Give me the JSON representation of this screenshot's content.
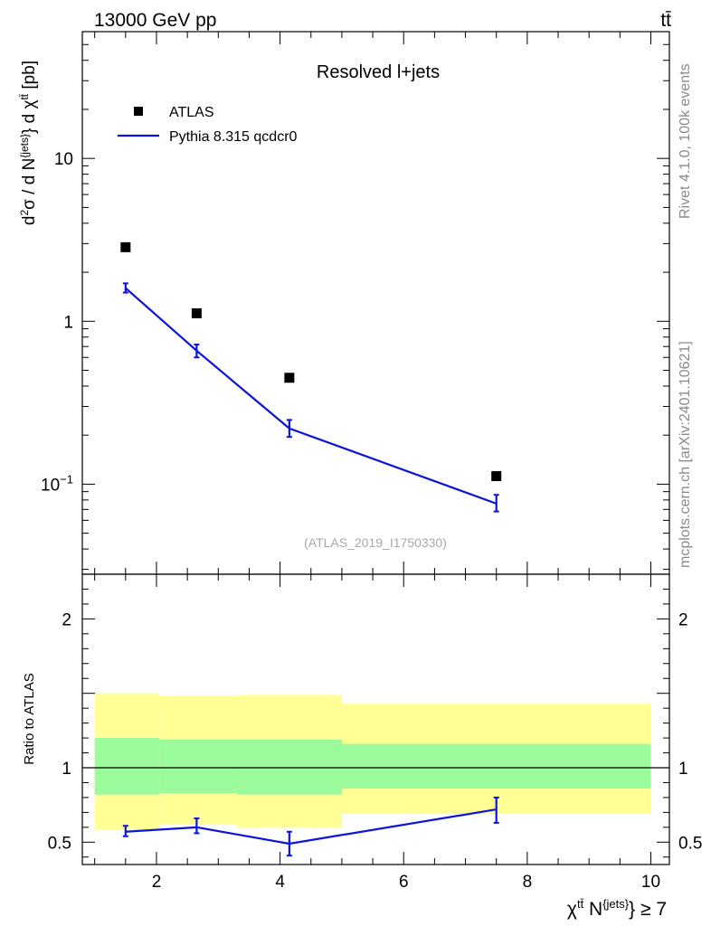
{
  "header": {
    "energy_label": "13000 GeV pp",
    "process_label": "tt̄"
  },
  "side_labels": {
    "rivet": "Rivet 4.1.0,  100k events",
    "mcplots": "mcplots.cern.ch [arXiv:2401.10621]"
  },
  "chart_data": [
    {
      "type": "scatter",
      "panel": "main",
      "title": "Resolved l+jets",
      "watermark": "(ATLAS_2019_I1750330)",
      "yscale": "log",
      "ylim": [
        0.028,
        60
      ],
      "xlim": [
        0.8,
        10.3
      ],
      "ylabel": "d²σ / d N^{jets} d χ^{tt̄} [pb]",
      "ytick_labels": [
        "10",
        "1",
        "10⁻¹"
      ],
      "ytick_values": [
        10,
        1,
        0.1
      ],
      "legend_position": "top-left",
      "series": [
        {
          "name": "ATLAS",
          "style": "markers",
          "color": "#000000",
          "x": [
            1.5,
            2.65,
            4.15,
            7.5
          ],
          "y": [
            2.85,
            1.12,
            0.45,
            0.112
          ]
        },
        {
          "name": "Pythia 8.315 qcdcr0",
          "style": "line",
          "color": "#0a14dc",
          "x": [
            1.5,
            2.65,
            4.15,
            7.5
          ],
          "y": [
            1.6,
            0.66,
            0.22,
            0.076
          ],
          "err_lo": [
            1.5,
            0.6,
            0.195,
            0.068
          ],
          "err_hi": [
            1.71,
            0.72,
            0.248,
            0.086
          ]
        }
      ]
    },
    {
      "type": "line",
      "panel": "ratio",
      "ylabel": "Ratio to ATLAS",
      "xlabel": "χ^{tt̄} N^{jets} ≥ 7",
      "xlim": [
        0.8,
        10.3
      ],
      "ylim": [
        0.35,
        2.3
      ],
      "xtick_labels": [
        "2",
        "4",
        "6",
        "8",
        "10"
      ],
      "xtick_values": [
        2,
        4,
        6,
        8,
        10
      ],
      "ytick_labels": [
        "0.5",
        "1",
        "2"
      ],
      "ytick_values": [
        0.5,
        1,
        2
      ],
      "reference_line": 1,
      "bands": [
        {
          "x_lo": 1.0,
          "x_hi": 2.05,
          "inner_lo": 0.82,
          "inner_hi": 1.2,
          "outer_lo": 0.58,
          "outer_hi": 1.5
        },
        {
          "x_lo": 2.05,
          "x_hi": 3.3,
          "inner_lo": 0.83,
          "inner_hi": 1.19,
          "outer_lo": 0.62,
          "outer_hi": 1.48
        },
        {
          "x_lo": 3.3,
          "x_hi": 5.0,
          "inner_lo": 0.82,
          "inner_hi": 1.19,
          "outer_lo": 0.6,
          "outer_hi": 1.49
        },
        {
          "x_lo": 5.0,
          "x_hi": 10.0,
          "inner_lo": 0.86,
          "inner_hi": 1.16,
          "outer_lo": 0.69,
          "outer_hi": 1.43
        }
      ],
      "series": [
        {
          "name": "Pythia 8.315 qcdcr0",
          "color": "#0a14dc",
          "x": [
            1.5,
            2.65,
            4.15,
            7.5
          ],
          "y": [
            0.57,
            0.6,
            0.49,
            0.72
          ],
          "err_lo": [
            0.54,
            0.56,
            0.41,
            0.63
          ],
          "err_hi": [
            0.61,
            0.66,
            0.57,
            0.8
          ]
        }
      ]
    }
  ]
}
